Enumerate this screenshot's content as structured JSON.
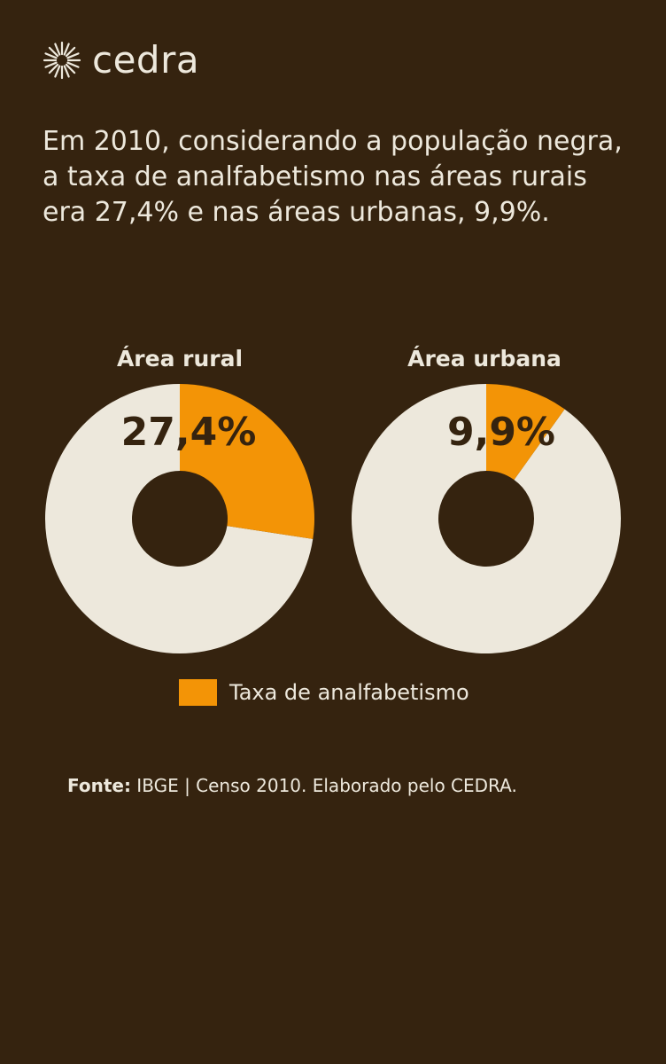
{
  "brand": {
    "name": "cedra",
    "icon": "sun-burst-icon"
  },
  "headline": {
    "lines": [
      "Em 2010, considerando a população negra,",
      "a taxa de analfabetismo nas áreas rurais",
      "era 27,4% e nas áreas urbanas, 9,9%."
    ]
  },
  "colors": {
    "background": "#35230f",
    "highlight": "#f39406",
    "rest": "#ede8dc",
    "label": "#35230f"
  },
  "chart_data": [
    {
      "type": "pie",
      "donut": true,
      "title": "Área rural",
      "categories": [
        "Taxa de analfabetismo",
        ""
      ],
      "values": [
        27.4,
        72.6
      ],
      "data_label": "27,4%"
    },
    {
      "type": "pie",
      "donut": true,
      "title": "Área urbana",
      "categories": [
        "Taxa de analfabetismo",
        ""
      ],
      "values": [
        9.9,
        90.1
      ],
      "data_label": "9,9%"
    }
  ],
  "legend": {
    "label": "Taxa de analfabetismo"
  },
  "source": {
    "prefix": "Fonte:",
    "text": " IBGE | Censo 2010. Elaborado pelo CEDRA."
  }
}
